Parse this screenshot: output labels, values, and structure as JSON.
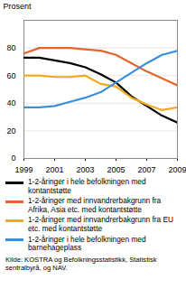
{
  "chart_data": {
    "type": "line",
    "y_label": "Prosent",
    "caption": "Kilde: KOSTRA og Befolkningsstatistikk, Statistisk sentralbyrå, og NAV.",
    "x": [
      1999,
      2000,
      2001,
      2002,
      2003,
      2004,
      2005,
      2006,
      2007,
      2008,
      2009
    ],
    "xlim": [
      1999,
      2009
    ],
    "xticks": [
      1999,
      2001,
      2003,
      2005,
      2007,
      2009
    ],
    "ylim": [
      0,
      100
    ],
    "yticks": [
      0,
      20,
      40,
      60,
      80
    ],
    "grid": true,
    "series": [
      {
        "name": "1-2-åringer i hele befolkningen med kontantstøtte",
        "color": "#000000",
        "values": [
          73,
          73,
          71,
          69,
          66,
          61,
          55,
          45,
          38,
          31,
          26
        ]
      },
      {
        "name": "1-2-åringer med innvandrerbakgrunn fra Afrika, Asia etc. med kontantstøtte",
        "color": "#e8632a",
        "values": [
          76,
          80,
          80,
          80,
          79,
          78,
          75,
          69,
          63,
          58,
          53
        ]
      },
      {
        "name": "1-2-åringer med innvandrerbakgrunn fra EU etc. med kontantstøtte",
        "color": "#f4a81d",
        "values": [
          60,
          60,
          59,
          59,
          60,
          54,
          52,
          44,
          39,
          35,
          37
        ]
      },
      {
        "name": "1-2-åringer i hele befolkningen med barnehageplass",
        "color": "#3a8fd9",
        "values": [
          37,
          37,
          38,
          41,
          44,
          48,
          55,
          62,
          69,
          75,
          78
        ]
      }
    ]
  }
}
